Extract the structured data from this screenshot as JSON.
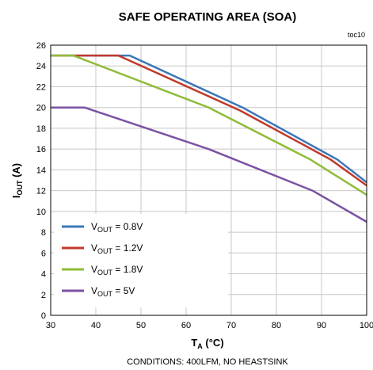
{
  "chart_data": {
    "type": "line",
    "title": "SAFE OPERATING AREA (SOA)",
    "figure_id": "toc10",
    "xlabel": {
      "main": "T",
      "sub": "A",
      "unit": " (°C)"
    },
    "ylabel": {
      "main": "I",
      "sub": "OUT",
      "unit": " (A)"
    },
    "xlim": [
      30,
      100
    ],
    "ylim": [
      0,
      26
    ],
    "x_ticks": [
      30,
      40,
      50,
      60,
      70,
      80,
      90,
      100
    ],
    "y_ticks": [
      0,
      2,
      4,
      6,
      8,
      10,
      12,
      14,
      16,
      18,
      20,
      22,
      24,
      26
    ],
    "grid": true,
    "legend_position": "lower-left",
    "conditions": "CONDITIONS:  400LFM, NO HEASTSINK",
    "series": [
      {
        "name_main": "V",
        "name_sub": "OUT",
        "name_rest": " = 0.8V",
        "color": "#3b77b8",
        "points": [
          [
            30,
            25
          ],
          [
            47.5,
            25
          ],
          [
            72.5,
            20
          ],
          [
            93.5,
            15
          ],
          [
            100,
            12.8
          ]
        ]
      },
      {
        "name_main": "V",
        "name_sub": "OUT",
        "name_rest": " = 1.2V",
        "color": "#c0392b",
        "points": [
          [
            30,
            25
          ],
          [
            45,
            25
          ],
          [
            72,
            19.7
          ],
          [
            92,
            15
          ],
          [
            100,
            12.5
          ]
        ]
      },
      {
        "name_main": "V",
        "name_sub": "OUT",
        "name_rest": " = 1.8V",
        "color": "#8fbc3a",
        "points": [
          [
            30,
            25
          ],
          [
            35,
            25
          ],
          [
            65,
            20
          ],
          [
            87.5,
            15
          ],
          [
            100,
            11.6
          ]
        ]
      },
      {
        "name_main": "V",
        "name_sub": "OUT",
        "name_rest": " = 5V",
        "color": "#7b52a3",
        "points": [
          [
            30,
            20
          ],
          [
            37.5,
            20
          ],
          [
            65,
            16
          ],
          [
            88,
            12
          ],
          [
            100,
            9
          ]
        ]
      }
    ]
  }
}
